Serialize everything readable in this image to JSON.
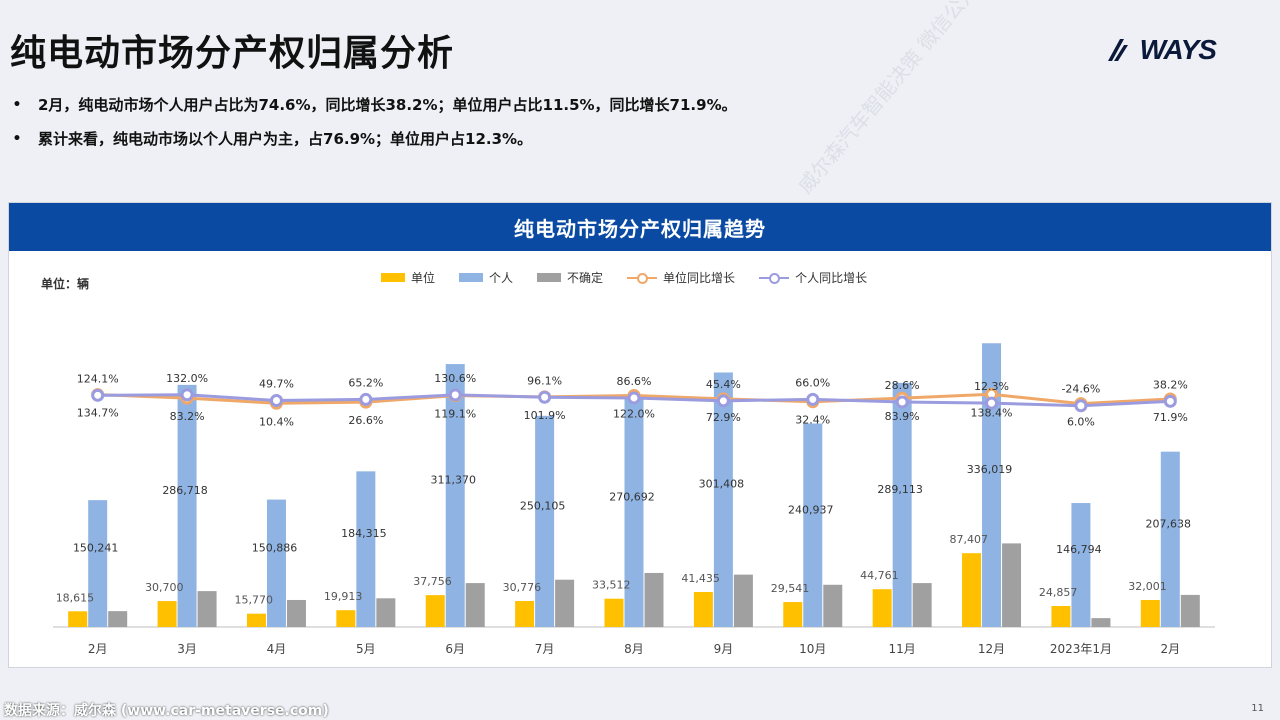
{
  "page": {
    "title": "纯电动市场分产权归属分析",
    "logo_text": "WAYS",
    "bullets": [
      "2月，纯电动市场个人用户占比为74.6%，同比增长38.2%；单位用户占比11.5%，同比增长71.9%。",
      "累计来看，纯电动市场以个人用户为主，占76.9%；单位用户占12.3%。"
    ],
    "footer": "数据来源：威尔森 (www.car-metaverse.com)",
    "page_number": "11",
    "watermark": "威尔森汽车智能决策 微信公众号:ways-data"
  },
  "chart_data": {
    "type": "bar",
    "title": "纯电动市场分产权归属趋势",
    "unit_label": "单位：辆",
    "categories": [
      "2月",
      "3月",
      "4月",
      "5月",
      "6月",
      "7月",
      "8月",
      "9月",
      "10月",
      "11月",
      "12月",
      "2023年1月",
      "2月"
    ],
    "series": [
      {
        "name": "单位",
        "type": "bar",
        "color": "#ffc000",
        "values": [
          18615,
          30700,
          15770,
          19913,
          37756,
          30776,
          33512,
          41435,
          29541,
          44761,
          87407,
          24857,
          32001
        ],
        "labels": [
          "18,615",
          "30,700",
          "15,770",
          "19,913",
          "37,756",
          "30,776",
          "33,512",
          "41,435",
          "29,541",
          "44,761",
          "87,407",
          "24,857",
          "32,001"
        ]
      },
      {
        "name": "个人",
        "type": "bar",
        "color": "#8fb4e3",
        "values": [
          150241,
          286718,
          150886,
          184315,
          311370,
          250105,
          270692,
          301408,
          240937,
          289113,
          336019,
          146794,
          207638
        ],
        "labels": [
          "150,241",
          "286,718",
          "150,886",
          "184,315",
          "311,370",
          "250,105",
          "270,692",
          "301,408",
          "240,937",
          "289,113",
          "336,019",
          "146,794",
          "207,638"
        ]
      },
      {
        "name": "不确定",
        "type": "bar",
        "color": "#a0a0a0",
        "values": [
          18800,
          42500,
          32000,
          34000,
          52000,
          56000,
          64000,
          62000,
          50000,
          52000,
          99000,
          10500,
          38000
        ]
      },
      {
        "name": "单位同比增长",
        "type": "line",
        "color": "#f0a868",
        "values": [
          134.7,
          83.2,
          10.4,
          26.6,
          119.1,
          101.9,
          122.0,
          72.9,
          32.4,
          83.9,
          138.4,
          6.0,
          71.9
        ],
        "labels": [
          "134.7%",
          "83.2%",
          "10.4%",
          "26.6%",
          "119.1%",
          "101.9%",
          "122.0%",
          "72.9%",
          "32.4%",
          "83.9%",
          "138.4%",
          "6.0%",
          "71.9%"
        ]
      },
      {
        "name": "个人同比增长",
        "type": "line",
        "color": "#9b9be0",
        "values": [
          124.1,
          132.0,
          49.7,
          65.2,
          130.6,
          96.1,
          86.6,
          45.4,
          66.0,
          28.6,
          12.3,
          -24.6,
          38.2
        ],
        "labels": [
          "124.1%",
          "132.0%",
          "49.7%",
          "65.2%",
          "130.6%",
          "96.1%",
          "86.6%",
          "45.4%",
          "66.0%",
          "28.6%",
          "12.3%",
          "-24.6%",
          "38.2%"
        ]
      }
    ],
    "legend_position": "top",
    "grid": false
  }
}
